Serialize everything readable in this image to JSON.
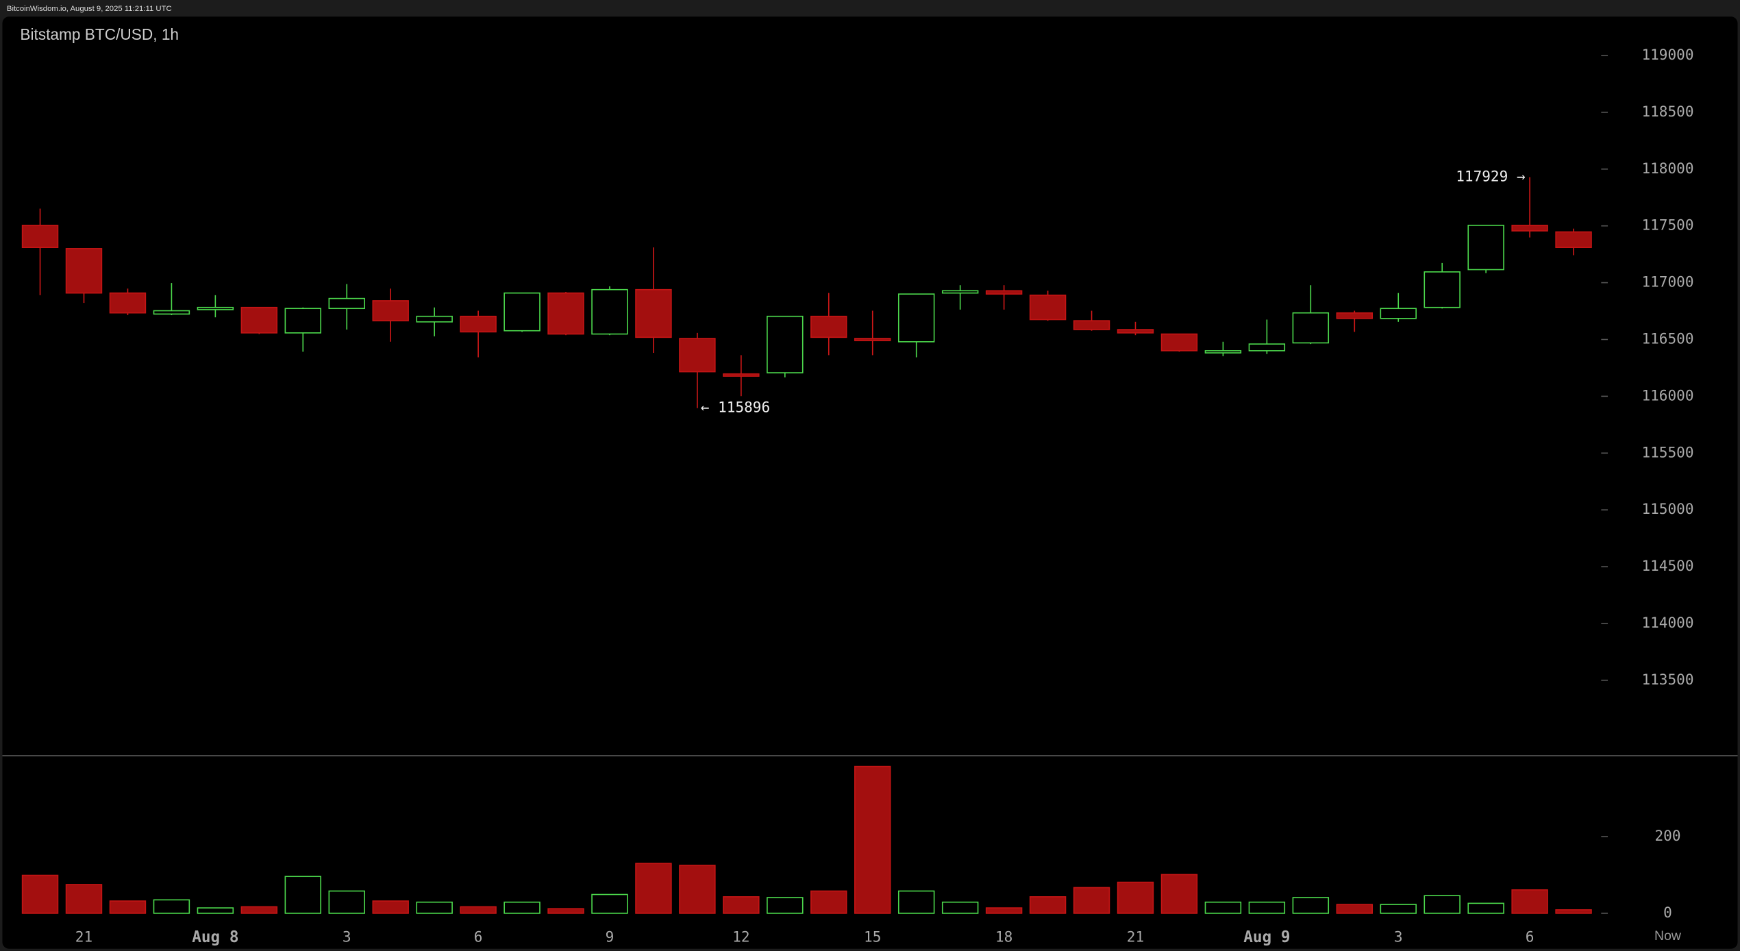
{
  "header": "BitcoinWisdom.io, August 9, 2025 11:21:11 UTC",
  "chart_data": {
    "type": "candlestick",
    "title": "Bitstamp BTC/USD, 1h",
    "categories": [
      null,
      "21",
      null,
      null,
      "Aug 8",
      null,
      null,
      "3",
      null,
      null,
      "6",
      null,
      null,
      "9",
      null,
      null,
      "12",
      null,
      null,
      "15",
      null,
      null,
      "18",
      null,
      null,
      "21",
      null,
      null,
      "Aug 9",
      null,
      null,
      "3",
      null,
      null,
      "6",
      null
    ],
    "now_label": "Now",
    "open": [
      117505,
      117300,
      116909,
      116724,
      116763,
      116782,
      116558,
      116773,
      116841,
      116655,
      116704,
      116577,
      116909,
      116548,
      116939,
      116509,
      116197,
      116207,
      116704,
      116509,
      116480,
      116909,
      116929,
      116890,
      116665,
      116587,
      116548,
      116382,
      116401,
      116470,
      116734,
      116685,
      116782,
      117115,
      117505,
      117447
    ],
    "high": [
      117652,
      117300,
      116948,
      116997,
      116890,
      116782,
      116782,
      116988,
      116948,
      116782,
      116753,
      116909,
      116919,
      116968,
      117310,
      116558,
      116362,
      116704,
      116909,
      116753,
      116900,
      116978,
      116978,
      116929,
      116753,
      116655,
      116548,
      116480,
      116675,
      116978,
      116753,
      116909,
      117173,
      117505,
      117929,
      117476
    ],
    "low": [
      116890,
      116822,
      116714,
      116714,
      116695,
      116548,
      116392,
      116587,
      116480,
      116528,
      116343,
      116567,
      116538,
      116538,
      116382,
      115896,
      116001,
      116167,
      116362,
      116362,
      116343,
      116763,
      116763,
      116665,
      116577,
      116538,
      116392,
      116353,
      116372,
      116460,
      116567,
      116655,
      116773,
      117085,
      117398,
      117242
    ],
    "close": [
      117310,
      116909,
      116734,
      116753,
      116782,
      116558,
      116773,
      116861,
      116665,
      116704,
      116567,
      116909,
      116548,
      116939,
      116519,
      116216,
      116177,
      116704,
      116519,
      116490,
      116900,
      116929,
      116900,
      116675,
      116587,
      116558,
      116401,
      116401,
      116460,
      116734,
      116685,
      116773,
      117095,
      117505,
      117456,
      117310
    ],
    "volume": [
      99,
      75,
      32,
      35,
      14,
      17,
      96,
      58,
      32,
      29,
      17,
      29,
      12,
      49,
      130,
      125,
      43,
      41,
      58,
      383,
      58,
      29,
      14,
      43,
      67,
      81,
      101,
      29,
      29,
      41,
      23,
      23,
      46,
      26,
      61,
      9
    ],
    "ylim": [
      112836,
      119342
    ],
    "yticks": [
      113500,
      114000,
      114500,
      115000,
      115500,
      116000,
      116500,
      117000,
      117500,
      118000,
      118500,
      119000
    ],
    "volume_ylim": [
      0,
      411
    ],
    "volume_ticks": [
      0,
      200
    ],
    "up_color": "#4cd94c",
    "down_color": "#a30f0f",
    "annotations": {
      "high": "117929 →",
      "low": "← 115896"
    }
  }
}
